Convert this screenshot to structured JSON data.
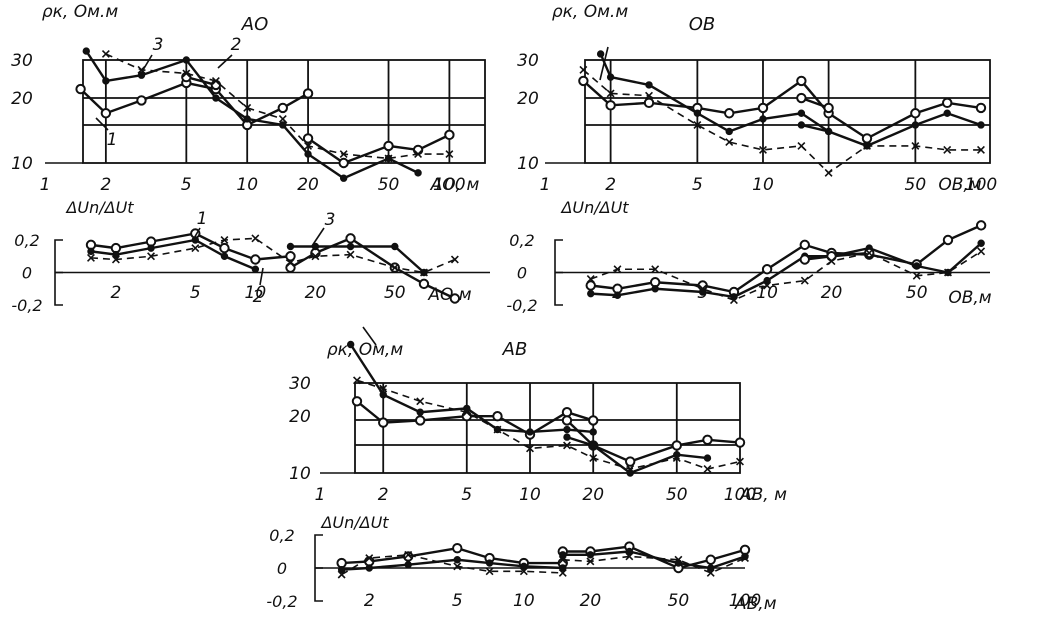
{
  "chart_data": [
    {
      "id": "rho-ao",
      "type": "line",
      "title": "АО",
      "ylabel": "ρк, Ом.м",
      "xlabel": "АО, м",
      "xscale": "log",
      "xlim": [
        1,
        150
      ],
      "yscale": "log",
      "ylim": [
        10,
        30
      ],
      "xticks": [
        "1",
        "2",
        "5",
        "10",
        "20",
        "50",
        "100"
      ],
      "yticks": [
        "10",
        "20",
        "30"
      ],
      "annotations": [
        "1",
        "2",
        "3"
      ],
      "grid": true,
      "series": [
        {
          "marker": "open",
          "line": "solid",
          "x": [
            1.5,
            2,
            3,
            5,
            7,
            10,
            15,
            20
          ],
          "y": [
            22,
            17,
            19.5,
            23.5,
            22,
            15,
            18,
            21
          ]
        },
        {
          "marker": "open",
          "line": "solid",
          "x": [
            20,
            30,
            50,
            70,
            100
          ],
          "y": [
            13,
            10,
            12,
            11.5,
            13.5
          ]
        },
        {
          "marker": "dot",
          "line": "solid",
          "x": [
            1.6,
            2,
            3,
            5,
            7,
            10,
            15,
            20,
            30,
            50,
            70
          ],
          "y": [
            33,
            24,
            25.5,
            30,
            20,
            16,
            15,
            11,
            8.5,
            10.5,
            9
          ]
        },
        {
          "marker": "open",
          "line": "solid",
          "x": [
            5,
            7
          ],
          "y": [
            25,
            23
          ]
        },
        {
          "marker": "cross",
          "line": "dashed",
          "x": [
            2,
            3,
            5,
            7,
            10,
            15,
            20,
            30,
            50,
            70,
            100
          ],
          "y": [
            32,
            27,
            26,
            24,
            18,
            16,
            12,
            11,
            10.5,
            11,
            11
          ]
        }
      ]
    },
    {
      "id": "du-ao",
      "type": "line",
      "ylabel": "ΔUn/ΔUt",
      "xlabel": "АО,м",
      "xscale": "log",
      "xlim": [
        1.4,
        150
      ],
      "ylim": [
        -0.2,
        0.2
      ],
      "xticks": [
        "2",
        "5",
        "10",
        "20",
        "50"
      ],
      "yticks": [
        "0,2",
        "0",
        "-0,2"
      ],
      "annotations": [
        "1",
        "2",
        "3"
      ],
      "series": [
        {
          "marker": "open",
          "line": "solid",
          "x": [
            1.5,
            2,
            3,
            5,
            7,
            10,
            15
          ],
          "y": [
            0.17,
            0.15,
            0.19,
            0.24,
            0.15,
            0.08,
            0.1
          ]
        },
        {
          "marker": "open",
          "line": "solid",
          "x": [
            15,
            20,
            30,
            50,
            70,
            100
          ],
          "y": [
            0.03,
            0.12,
            0.21,
            0.03,
            -0.07,
            -0.16
          ]
        },
        {
          "marker": "dot",
          "line": "solid",
          "x": [
            1.5,
            2,
            3,
            5,
            7,
            10
          ],
          "y": [
            0.13,
            0.11,
            0.15,
            0.2,
            0.1,
            0.02
          ]
        },
        {
          "marker": "dot",
          "line": "solid",
          "x": [
            15,
            20,
            30,
            50,
            70
          ],
          "y": [
            0.16,
            0.16,
            0.16,
            0.16,
            0
          ]
        },
        {
          "marker": "cross",
          "line": "dashed",
          "x": [
            1.5,
            2,
            3,
            5,
            7,
            10,
            15,
            20,
            30,
            50,
            70,
            100
          ],
          "y": [
            0.09,
            0.08,
            0.1,
            0.15,
            0.2,
            0.21,
            0.06,
            0.1,
            0.11,
            0.03,
            0,
            0.08
          ]
        }
      ]
    },
    {
      "id": "rho-ob",
      "type": "line",
      "title": "ОВ",
      "ylabel": "ρк, Ом.м",
      "xlabel": "ОВ,м",
      "xscale": "log",
      "xlim": [
        1,
        110
      ],
      "yscale": "log",
      "ylim": [
        10,
        30
      ],
      "xticks": [
        "1",
        "2",
        "5",
        "10",
        "50",
        "100"
      ],
      "yticks": [
        "10",
        "20",
        "30"
      ],
      "grid": true,
      "series": [
        {
          "marker": "open",
          "line": "solid",
          "x": [
            1.5,
            2,
            3,
            5,
            7,
            10,
            15,
            20,
            30,
            50,
            70,
            100
          ],
          "y": [
            24,
            18.5,
            19,
            18,
            17,
            18,
            24,
            17,
            13,
            17,
            19,
            18
          ]
        },
        {
          "marker": "open",
          "line": "solid",
          "x": [
            15,
            20
          ],
          "y": [
            20,
            18
          ]
        },
        {
          "marker": "dot",
          "line": "solid",
          "x": [
            1.8,
            2,
            3,
            5,
            7,
            10,
            15,
            20
          ],
          "y": [
            32,
            25,
            23,
            17,
            14,
            16,
            17,
            14
          ]
        },
        {
          "marker": "dot",
          "line": "solid",
          "x": [
            15,
            20,
            30,
            50,
            70,
            100
          ],
          "y": [
            15,
            14,
            12,
            15,
            17,
            15
          ]
        },
        {
          "marker": "cross",
          "line": "dashed",
          "x": [
            1.5,
            2,
            3,
            5,
            7,
            10,
            15,
            20,
            30,
            50,
            70,
            100
          ],
          "y": [
            27,
            21,
            20.5,
            15,
            12.5,
            11.5,
            12,
            9,
            12,
            12,
            11.5,
            11.5
          ]
        }
      ]
    },
    {
      "id": "du-ob",
      "type": "line",
      "ylabel": "ΔUn/ΔUt",
      "xlabel": "ОВ,м",
      "xscale": "log",
      "xlim": [
        1.2,
        110
      ],
      "ylim": [
        -0.2,
        0.2
      ],
      "xticks": [
        "2",
        "5",
        "10",
        "20",
        "50"
      ],
      "yticks": [
        "0,2",
        "0",
        "-0,2"
      ],
      "series": [
        {
          "marker": "open",
          "line": "solid",
          "x": [
            1.5,
            2,
            3,
            5,
            7,
            10,
            15,
            20,
            30,
            50,
            70,
            100
          ],
          "y": [
            -0.08,
            -0.1,
            -0.06,
            -0.08,
            -0.12,
            0.02,
            0.17,
            0.12,
            0.11,
            0.05,
            0.2,
            0.29
          ]
        },
        {
          "marker": "dot",
          "line": "solid",
          "x": [
            1.5,
            2,
            3,
            5,
            7,
            10,
            15,
            20,
            30,
            50,
            70,
            100
          ],
          "y": [
            -0.13,
            -0.14,
            -0.1,
            -0.12,
            -0.15,
            -0.05,
            0.1,
            0.1,
            0.15,
            0.04,
            0,
            0.18
          ]
        },
        {
          "marker": "open",
          "line": "solid",
          "x": [
            15,
            20,
            30
          ],
          "y": [
            0.08,
            0.1,
            0.12
          ]
        },
        {
          "marker": "cross",
          "line": "dashed",
          "x": [
            1.5,
            2,
            3,
            5,
            7,
            10,
            15,
            20,
            30,
            50,
            70,
            100
          ],
          "y": [
            -0.04,
            0.02,
            0.02,
            -0.1,
            -0.17,
            -0.08,
            -0.05,
            0.07,
            0.12,
            -0.02,
            0,
            0.13
          ]
        }
      ]
    },
    {
      "id": "rho-ab",
      "type": "line",
      "title": "АВ",
      "ylabel": "ρк, Ом,м",
      "xlabel": "АВ, м",
      "xscale": "log",
      "xlim": [
        1,
        100
      ],
      "yscale": "log",
      "ylim": [
        10,
        30
      ],
      "xticks": [
        "1",
        "2",
        "5",
        "10",
        "20",
        "50",
        "100"
      ],
      "yticks": [
        "10",
        "20",
        "30"
      ],
      "grid": true,
      "series": [
        {
          "marker": "open",
          "line": "solid",
          "x": [
            1.5,
            2,
            3,
            5,
            7,
            10,
            15,
            20
          ],
          "y": [
            24,
            18.5,
            19,
            20,
            20,
            16,
            21,
            19
          ]
        },
        {
          "marker": "open",
          "line": "solid",
          "x": [
            15,
            20,
            30,
            50,
            70,
            100
          ],
          "y": [
            19,
            14,
            11.5,
            14,
            15,
            14.5
          ]
        },
        {
          "marker": "dot",
          "line": "solid",
          "x": [
            1.4,
            2,
            3,
            5,
            7,
            10,
            15,
            20
          ],
          "y": [
            48,
            26,
            21,
            22,
            17,
            16.5,
            17,
            16.5
          ]
        },
        {
          "marker": "dot",
          "line": "solid",
          "x": [
            15,
            20,
            30,
            50,
            70
          ],
          "y": [
            15.5,
            14,
            10,
            12.5,
            12
          ]
        },
        {
          "marker": "cross",
          "line": "dashed",
          "x": [
            1.5,
            2,
            3,
            5,
            7,
            10,
            15,
            20,
            30,
            50,
            70,
            100
          ],
          "y": [
            31,
            28,
            24,
            21,
            17,
            13.5,
            14,
            12,
            10.5,
            12,
            10.5,
            11.5
          ]
        }
      ]
    },
    {
      "id": "du-ab",
      "type": "line",
      "ylabel": "ΔUn/ΔUt",
      "xlabel": "АВ,м",
      "xscale": "log",
      "xlim": [
        1.4,
        100
      ],
      "ylim": [
        -0.2,
        0.2
      ],
      "xticks": [
        "2",
        "5",
        "10",
        "20",
        "50",
        "100"
      ],
      "yticks": [
        "0,2",
        "0",
        "-0,2"
      ],
      "series": [
        {
          "marker": "open",
          "line": "solid",
          "x": [
            1.5,
            2,
            3,
            5,
            7,
            10,
            15
          ],
          "y": [
            0.03,
            0.04,
            0.07,
            0.12,
            0.06,
            0.03,
            0.03
          ]
        },
        {
          "marker": "open",
          "line": "solid",
          "x": [
            15,
            20,
            30,
            50,
            70,
            100
          ],
          "y": [
            0.1,
            0.1,
            0.13,
            0,
            0.05,
            0.11
          ]
        },
        {
          "marker": "dot",
          "line": "solid",
          "x": [
            1.5,
            2,
            3,
            5,
            7,
            10,
            15
          ],
          "y": [
            -0.01,
            0,
            0.02,
            0.05,
            0.03,
            0.01,
            0
          ]
        },
        {
          "marker": "dot",
          "line": "solid",
          "x": [
            15,
            20,
            30,
            50,
            70,
            100
          ],
          "y": [
            0.08,
            0.08,
            0.1,
            0.03,
            0,
            0.07
          ]
        },
        {
          "marker": "cross",
          "line": "dashed",
          "x": [
            1.5,
            2,
            3,
            5,
            7,
            10,
            15
          ],
          "y": [
            -0.04,
            0.06,
            0.08,
            0.01,
            -0.02,
            -0.02,
            -0.03
          ]
        },
        {
          "marker": "cross",
          "line": "dashed",
          "x": [
            15,
            20,
            30,
            50,
            70,
            100
          ],
          "y": [
            0.05,
            0.04,
            0.07,
            0.05,
            -0.03,
            0.06
          ]
        }
      ]
    }
  ]
}
